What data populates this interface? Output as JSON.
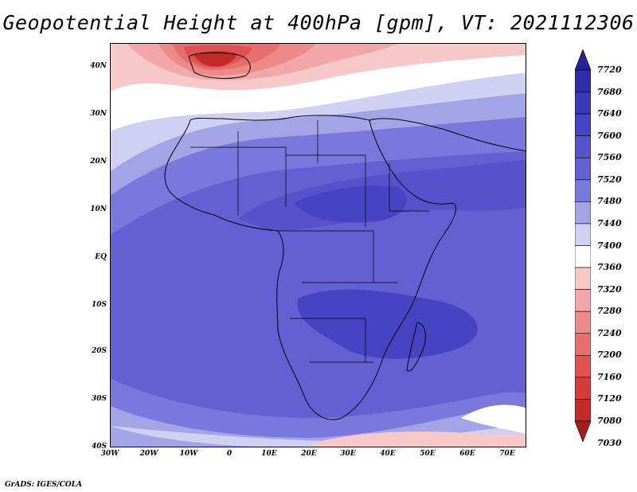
{
  "title": "Geopotential Height at 400hPa [gpm], VT: 2021112306",
  "credit": "GrADS: IGES/COLA",
  "axes": {
    "lat_labels": [
      "40N",
      "30N",
      "20N",
      "10N",
      "EQ",
      "10S",
      "20S",
      "30S",
      "40S"
    ],
    "lon_labels": [
      "30W",
      "20W",
      "10W",
      "0",
      "10E",
      "20E",
      "30E",
      "40E",
      "50E",
      "60E",
      "70E"
    ]
  },
  "colorbar": {
    "levels": [
      "7720",
      "7680",
      "7640",
      "7600",
      "7560",
      "7520",
      "7480",
      "7440",
      "7400",
      "7360",
      "7320",
      "7280",
      "7240",
      "7200",
      "7160",
      "7120",
      "7080",
      "7030"
    ],
    "colors": [
      "#25229a",
      "#2f2ca8",
      "#3a38b5",
      "#4644c2",
      "#5552cc",
      "#6360d3",
      "#7a78dc",
      "#a4a3e6",
      "#cfd0f2",
      "#ffffff",
      "#f7c8c8",
      "#f2a8a8",
      "#ec8a8a",
      "#e66e6e",
      "#e05252",
      "#d63c3c",
      "#c42a2a",
      "#a81e1e"
    ]
  }
}
